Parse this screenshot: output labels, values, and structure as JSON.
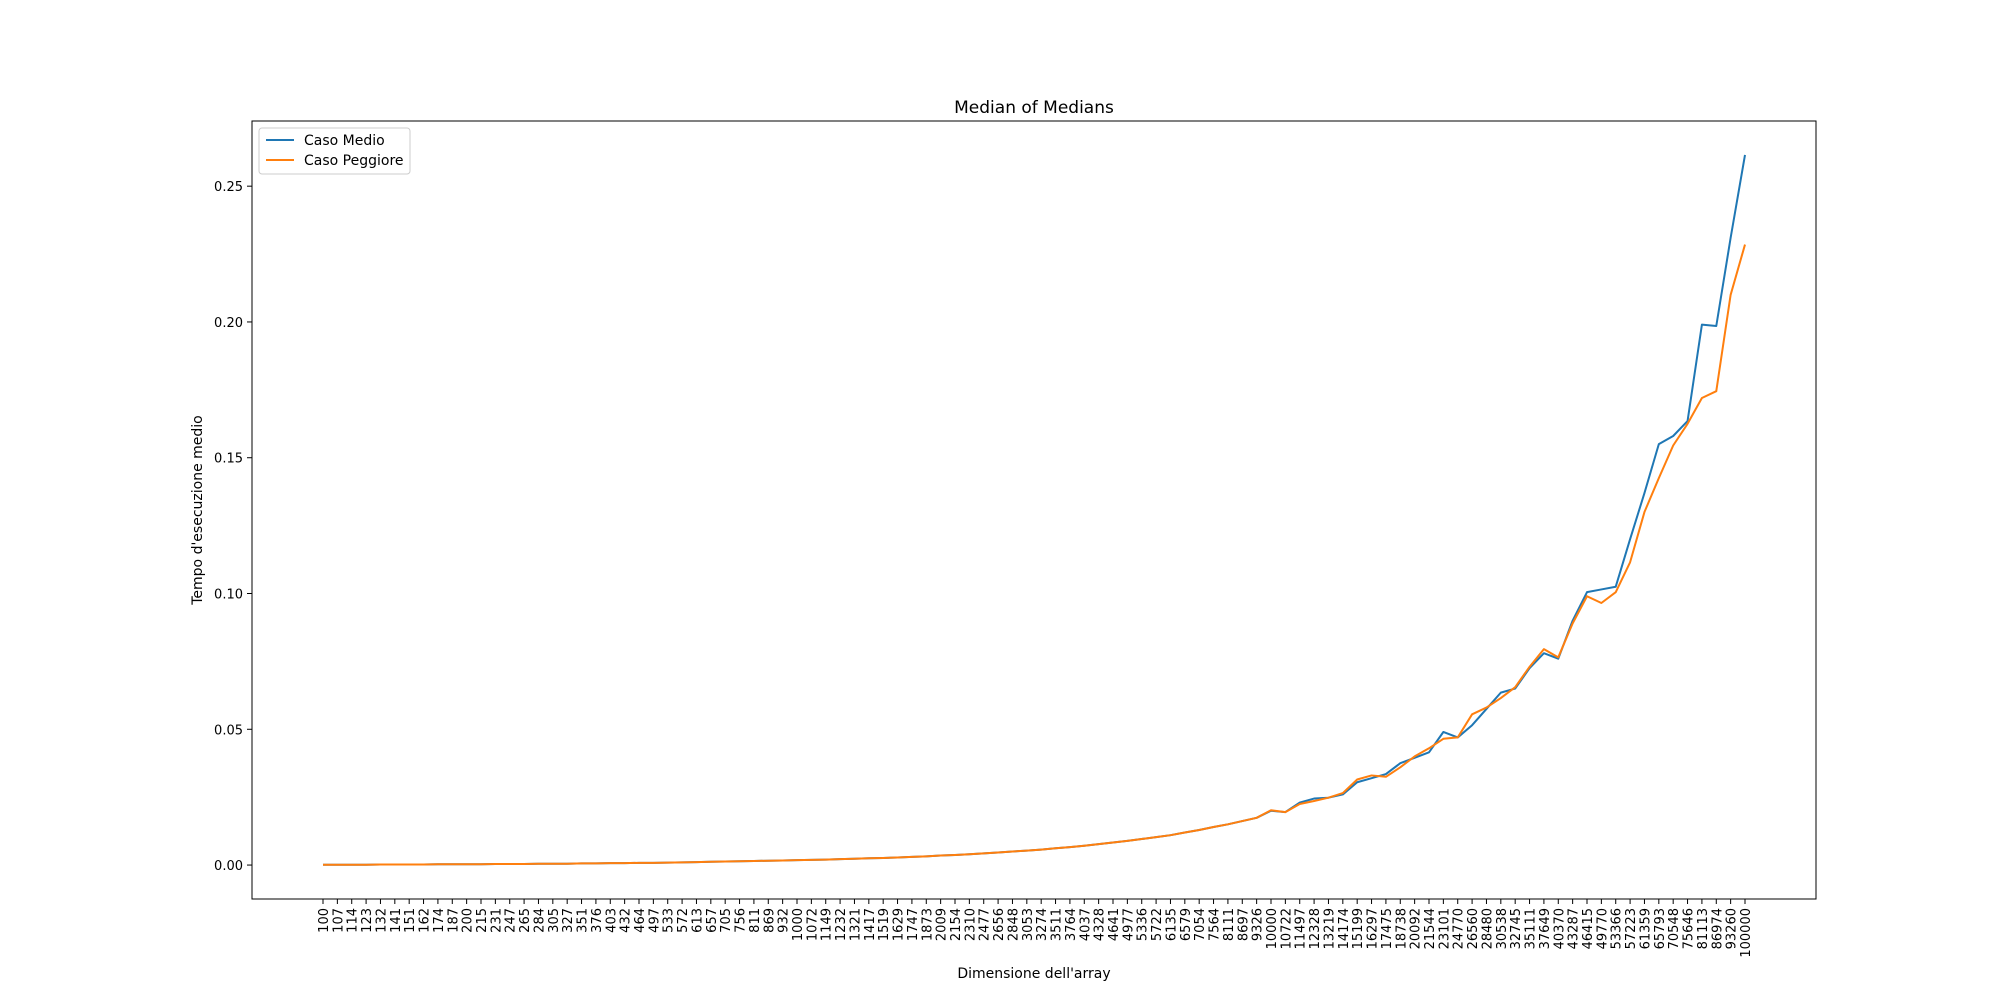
{
  "chart_data": {
    "type": "line",
    "title": "Median of Medians",
    "xlabel": "Dimensione dell'array",
    "ylabel": "Tempo d'esecuzione medio",
    "ylim": [
      -0.0125,
      0.274
    ],
    "yticks": [
      "0.00",
      "0.05",
      "0.10",
      "0.15",
      "0.20",
      "0.25"
    ],
    "ytick_values": [
      0.0,
      0.05,
      0.1,
      0.15,
      0.2,
      0.25
    ],
    "grid": false,
    "legend_position": "top-left",
    "categories": [
      "100",
      "107",
      "114",
      "123",
      "132",
      "141",
      "151",
      "162",
      "174",
      "187",
      "200",
      "215",
      "231",
      "247",
      "265",
      "284",
      "305",
      "327",
      "351",
      "376",
      "403",
      "432",
      "464",
      "497",
      "533",
      "572",
      "613",
      "657",
      "705",
      "756",
      "811",
      "869",
      "932",
      "1000",
      "1072",
      "1149",
      "1232",
      "1321",
      "1417",
      "1519",
      "1629",
      "1747",
      "1873",
      "2009",
      "2154",
      "2310",
      "2477",
      "2656",
      "2848",
      "3053",
      "3274",
      "3511",
      "3764",
      "4037",
      "4328",
      "4641",
      "4977",
      "5336",
      "5722",
      "6135",
      "6579",
      "7054",
      "7564",
      "8111",
      "8697",
      "9326",
      "10000",
      "10722",
      "11497",
      "12328",
      "13219",
      "14174",
      "15199",
      "16297",
      "17475",
      "18738",
      "20092",
      "21544",
      "23101",
      "24770",
      "26560",
      "28480",
      "30538",
      "32745",
      "35111",
      "37649",
      "40370",
      "43287",
      "46415",
      "49770",
      "53366",
      "57223",
      "61359",
      "65793",
      "70548",
      "75646",
      "81113",
      "86974",
      "93260",
      "100000"
    ],
    "series": [
      {
        "name": "Caso Medio",
        "color": "#1f77b4",
        "values": [
          0.0001,
          0.0001,
          0.0001,
          0.0001,
          0.0002,
          0.0002,
          0.0002,
          0.0002,
          0.0003,
          0.0003,
          0.0003,
          0.0003,
          0.0004,
          0.0004,
          0.0004,
          0.0005,
          0.0005,
          0.0005,
          0.0006,
          0.0006,
          0.0007,
          0.0007,
          0.0008,
          0.0008,
          0.0009,
          0.001,
          0.0011,
          0.0012,
          0.0013,
          0.0014,
          0.0015,
          0.0016,
          0.0017,
          0.0018,
          0.0019,
          0.002,
          0.0022,
          0.0023,
          0.0025,
          0.0026,
          0.0028,
          0.003,
          0.0032,
          0.0035,
          0.0037,
          0.004,
          0.0043,
          0.0046,
          0.005,
          0.0053,
          0.0057,
          0.0062,
          0.0066,
          0.0071,
          0.0077,
          0.0083,
          0.0089,
          0.0096,
          0.0103,
          0.011,
          0.012,
          0.0129,
          0.014,
          0.015,
          0.0162,
          0.0174,
          0.02,
          0.0195,
          0.023,
          0.0245,
          0.0248,
          0.026,
          0.0305,
          0.032,
          0.0335,
          0.0375,
          0.0395,
          0.0415,
          0.049,
          0.047,
          0.0515,
          0.0575,
          0.0635,
          0.065,
          0.0725,
          0.078,
          0.076,
          0.09,
          0.1005,
          0.1015,
          0.1025,
          0.12,
          0.137,
          0.155,
          0.158,
          0.1635,
          0.199,
          0.1985,
          0.231,
          0.2615
        ]
      },
      {
        "name": "Caso Peggiore",
        "color": "#ff7f0e",
        "values": [
          0.0001,
          0.0001,
          0.0001,
          0.0001,
          0.0002,
          0.0002,
          0.0002,
          0.0002,
          0.0003,
          0.0003,
          0.0003,
          0.0003,
          0.0004,
          0.0004,
          0.0004,
          0.0005,
          0.0005,
          0.0005,
          0.0006,
          0.0006,
          0.0007,
          0.0007,
          0.0008,
          0.0008,
          0.0009,
          0.001,
          0.0011,
          0.0012,
          0.0013,
          0.0014,
          0.0015,
          0.0016,
          0.0017,
          0.0018,
          0.0019,
          0.002,
          0.0022,
          0.0023,
          0.0025,
          0.0026,
          0.0028,
          0.003,
          0.0032,
          0.0035,
          0.0037,
          0.004,
          0.0043,
          0.0046,
          0.005,
          0.0053,
          0.0057,
          0.0062,
          0.0066,
          0.0071,
          0.0077,
          0.0083,
          0.0089,
          0.0096,
          0.0103,
          0.011,
          0.012,
          0.0129,
          0.014,
          0.015,
          0.0162,
          0.0174,
          0.0202,
          0.0195,
          0.0225,
          0.0236,
          0.0248,
          0.0265,
          0.0315,
          0.033,
          0.0325,
          0.036,
          0.04,
          0.043,
          0.0465,
          0.047,
          0.0555,
          0.058,
          0.0615,
          0.0655,
          0.073,
          0.0795,
          0.0765,
          0.089,
          0.099,
          0.0965,
          0.1005,
          0.1115,
          0.13,
          0.1425,
          0.1545,
          0.1625,
          0.172,
          0.1745,
          0.21,
          0.2285
        ]
      }
    ]
  }
}
